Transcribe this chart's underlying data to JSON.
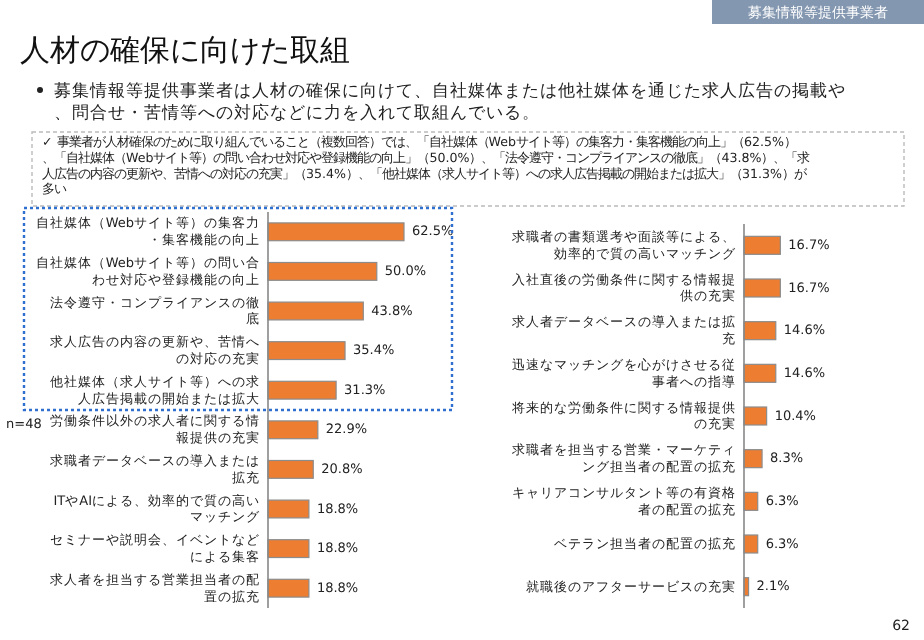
{
  "chart_data": [
    {
      "type": "bar",
      "orientation": "horizontal",
      "title": "人材の確保に向けた取組",
      "subtitle": "募集情報等提供事業者は人材の確保に向けて、自社媒体または他社媒体を通じた求人広告の掲載や、問合せ・苦情等への対応などに力を入れて取組んでいる。",
      "annotations": [
        "募集情報等提供事業者",
        "✓ 事業者が人材確保のために取り組んでいること（複数回答）では、「自社媒体（Webサイト等）の集客力・集客機能の向上」（62.5%）、「自社媒体（Webサイト等）の問い合わせ対応や登録機能の向上」（50.0%）、「法令遵守・コンプライアンスの徹底」（43.8%）、「求人広告の内容の更新や、苦情への対応の充実」（35.4%）、「他社媒体（求人サイト等）への求人広告掲載の開始または拡大」（31.3%）が多い",
        "n=48",
        "62"
      ],
      "categories": [
        "自社媒体（Webサイト等）の集客力・集客機能の向上",
        "自社媒体（Webサイト等）の問い合わせ対応や登録機能の向上",
        "法令遵守・コンプライアンスの徹底",
        "求人広告の内容の更新や、苦情への対応の充実",
        "他社媒体（求人サイト等）への求人広告掲載の開始または拡大",
        "労働条件以外の求人者に関する情報提供の充実",
        "求職者データベースの導入または拡充",
        "ITやAIによる、効率的で質の高いマッチング",
        "セミナーや説明会、イベントなどによる集客",
        "求人者を担当する営業担当者の配置の拡充"
      ],
      "values": [
        62.5,
        50.0,
        43.8,
        35.4,
        31.3,
        22.9,
        20.8,
        18.8,
        18.8,
        18.8
      ],
      "value_labels": [
        "62.5%",
        "50.0%",
        "43.8%",
        "35.4%",
        "31.3%",
        "22.9%",
        "20.8%",
        "18.8%",
        "18.8%",
        "18.8%"
      ],
      "color": "#ed7d31"
    },
    {
      "type": "bar",
      "orientation": "horizontal",
      "categories": [
        "求職者の書類選考や面談等による、効率的で質の高いマッチング",
        "入社直後の労働条件に関する情報提供の充実",
        "求人者データベースの導入または拡充",
        "迅速なマッチングを心がけさせる従事者への指導",
        "将来的な労働条件に関する情報提供の充実",
        "求職者を担当する営業・マーケティング担当者の配置の拡充",
        "キャリアコンサルタント等の有資格者の配置の拡充",
        "ベテラン担当者の配置の拡充",
        "就職後のアフターサービスの充実"
      ],
      "values": [
        16.7,
        16.7,
        14.6,
        14.6,
        10.4,
        8.3,
        6.3,
        6.3,
        2.1
      ],
      "value_labels": [
        "16.7%",
        "16.7%",
        "14.6%",
        "14.6%",
        "10.4%",
        "8.3%",
        "6.3%",
        "6.3%",
        "2.1%"
      ],
      "color": "#ed7d31"
    }
  ]
}
